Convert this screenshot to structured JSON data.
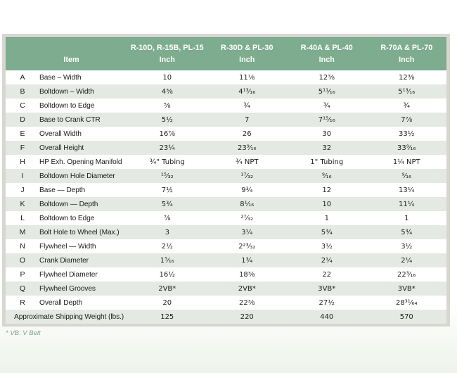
{
  "table": {
    "header": {
      "item_label": "Item",
      "unit": "Inch",
      "columns": [
        {
          "models": "R-10D, R-15B, PL-15",
          "unit": "Inch"
        },
        {
          "models": "R-30D & PL-30",
          "unit": "Inch"
        },
        {
          "models": "R-40A & PL-40",
          "unit": "Inch"
        },
        {
          "models": "R-70A & PL-70",
          "unit": "Inch"
        }
      ]
    },
    "rows": [
      {
        "letter": "A",
        "label": "Base – Width",
        "values": [
          "10",
          "11⅛",
          "12⅜",
          "12⅜"
        ]
      },
      {
        "letter": "B",
        "label": "Boltdown – Width",
        "values": [
          "4⅜",
          "4¹³⁄₁₆",
          "5¹¹⁄₁₆",
          "5¹³⁄₁₆"
        ]
      },
      {
        "letter": "C",
        "label": "Boltdown to Edge",
        "values": [
          "⅝",
          "¾",
          "¾",
          "¾"
        ]
      },
      {
        "letter": "D",
        "label": "Base to Crank CTR",
        "values": [
          "5½",
          "7",
          "7¹⁵⁄₁₆",
          "7⅞"
        ]
      },
      {
        "letter": "E",
        "label": "Overall Width",
        "values": [
          "16⅞",
          "26",
          "30",
          "33½"
        ]
      },
      {
        "letter": "F",
        "label": "Overall Height",
        "values": [
          "23¼",
          "23⁹⁄₁₆",
          "32",
          "33⁹⁄₁₆"
        ]
      },
      {
        "letter": "H",
        "label": "HP Exh. Opening Manifold",
        "values": [
          "¾\" Tubing",
          "¾ NPT",
          "1\" Tubing",
          "1¼ NPT"
        ]
      },
      {
        "letter": "I",
        "label": "Boltdown Hole Diameter",
        "values": [
          "¹⁵⁄₃₂",
          "¹⁷⁄₃₂",
          "⁹⁄₁₆",
          "⁹⁄₁₆"
        ]
      },
      {
        "letter": "J",
        "label": "Base — Depth",
        "values": [
          "7½",
          "9¾",
          "12",
          "13¼"
        ]
      },
      {
        "letter": "K",
        "label": "Boltdown — Depth",
        "values": [
          "5¾",
          "8¹⁄₁₆",
          "10",
          "11¼"
        ]
      },
      {
        "letter": "L",
        "label": "Boltdown to Edge",
        "values": [
          "⅞",
          "²⁷⁄₃₂",
          "1",
          "1"
        ]
      },
      {
        "letter": "M",
        "label": "Bolt Hole to Wheel (Max.)",
        "values": [
          "3",
          "3¼",
          "5¾",
          "5¾"
        ]
      },
      {
        "letter": "N",
        "label": "Flywheel — Width",
        "values": [
          "2½",
          "2²³⁄₃₂",
          "3½",
          "3½"
        ]
      },
      {
        "letter": "O",
        "label": "Crank Diameter",
        "values": [
          "1⁵⁄₁₆",
          "1¾",
          "2¼",
          "2¼"
        ]
      },
      {
        "letter": "P",
        "label": "Flywheel Diameter",
        "values": [
          "16½",
          "18⅜",
          "22",
          "22³⁄₁₆"
        ]
      },
      {
        "letter": "Q",
        "label": "Flywheel Grooves",
        "values": [
          "2VB*",
          "2VB*",
          "3VB*",
          "3VB*"
        ]
      },
      {
        "letter": "R",
        "label": "Overall Depth",
        "values": [
          "20",
          "22⅜",
          "27½",
          "28³¹⁄₆₄"
        ]
      }
    ],
    "footer_row": {
      "label": "Approximate Shipping Weight (lbs.)",
      "values": [
        "125",
        "220",
        "440",
        "570"
      ]
    },
    "footnote": "* VB: V Belt"
  },
  "colors": {
    "header_green": "#7dac8e",
    "alt_row": "#e4e9e3",
    "frame_gray": "#d9d6d1",
    "footnote_green": "#7fa290"
  }
}
